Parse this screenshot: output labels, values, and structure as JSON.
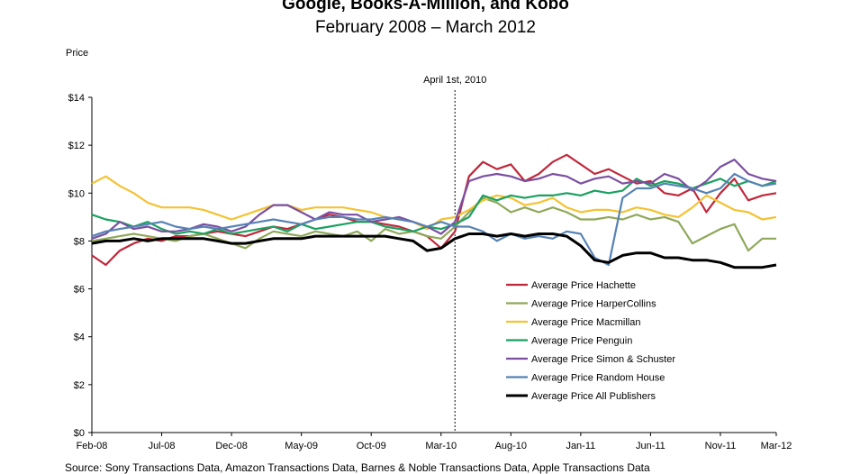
{
  "chart_data": {
    "type": "line",
    "title": "Google, Books-A-Million, and Kobo",
    "subtitle": "February 2008 – March 2012",
    "ylabel": "Price",
    "xlabel": "",
    "ylim": [
      0,
      14
    ],
    "yticks": [
      "$0",
      "$2",
      "$4",
      "$6",
      "$8",
      "$10",
      "$12",
      "$14"
    ],
    "x_tick_labels": [
      "Feb-08",
      "Jul-08",
      "Dec-08",
      "May-09",
      "Oct-09",
      "Mar-10",
      "Aug-10",
      "Jan-11",
      "Jun-11",
      "Nov-11",
      "Mar-12"
    ],
    "x_tick_index": [
      0,
      5,
      10,
      15,
      20,
      25,
      30,
      35,
      40,
      45,
      49
    ],
    "grid": false,
    "legend_position": "right-center",
    "annotation": {
      "label": "April 1st, 2010",
      "x_index": 26,
      "style": "dotted-vertical-line"
    },
    "series": [
      {
        "name": "Average Price Hachette",
        "color": "#c0273a",
        "values": [
          7.4,
          7.0,
          7.6,
          7.9,
          8.1,
          8.0,
          8.2,
          8.2,
          8.3,
          8.4,
          8.3,
          8.2,
          8.4,
          8.6,
          8.5,
          8.7,
          8.9,
          9.1,
          9.0,
          8.8,
          8.8,
          8.7,
          8.6,
          8.4,
          8.2,
          7.7,
          8.4,
          10.7,
          11.3,
          11.0,
          11.2,
          10.5,
          10.8,
          11.3,
          11.6,
          11.2,
          10.8,
          11.0,
          10.7,
          10.4,
          10.5,
          10.0,
          9.9,
          10.2,
          9.2,
          10.0,
          10.6,
          9.7,
          9.9,
          10.0
        ]
      },
      {
        "name": "Average Price HarperCollins",
        "color": "#8fa85a",
        "values": [
          8.0,
          8.1,
          8.2,
          8.3,
          8.2,
          8.1,
          8.0,
          8.2,
          8.3,
          8.1,
          7.9,
          7.7,
          8.1,
          8.4,
          8.3,
          8.2,
          8.4,
          8.3,
          8.2,
          8.4,
          8.0,
          8.5,
          8.3,
          8.4,
          8.2,
          8.1,
          8.6,
          9.2,
          9.8,
          9.6,
          9.2,
          9.4,
          9.2,
          9.4,
          9.2,
          8.9,
          8.9,
          9.0,
          8.9,
          9.1,
          8.9,
          9.0,
          8.8,
          7.9,
          8.2,
          8.5,
          8.7,
          7.6,
          8.1,
          8.1
        ]
      },
      {
        "name": "Average Price Macmillan",
        "color": "#f4c233",
        "values": [
          10.4,
          10.7,
          10.3,
          10.0,
          9.6,
          9.4,
          9.4,
          9.4,
          9.3,
          9.1,
          8.9,
          9.1,
          9.3,
          9.5,
          9.5,
          9.3,
          9.4,
          9.4,
          9.4,
          9.3,
          9.2,
          9.0,
          8.9,
          8.8,
          8.5,
          8.9,
          9.0,
          9.3,
          9.7,
          9.9,
          9.8,
          9.5,
          9.6,
          9.8,
          9.4,
          9.2,
          9.3,
          9.3,
          9.2,
          9.4,
          9.3,
          9.1,
          9.0,
          9.4,
          9.9,
          9.6,
          9.3,
          9.2,
          8.9,
          9.0
        ]
      },
      {
        "name": "Average Price Penguin",
        "color": "#1aa160",
        "values": [
          9.1,
          8.9,
          8.8,
          8.6,
          8.8,
          8.5,
          8.3,
          8.4,
          8.3,
          8.5,
          8.3,
          8.4,
          8.5,
          8.6,
          8.4,
          8.7,
          8.5,
          8.6,
          8.7,
          8.8,
          8.8,
          8.6,
          8.5,
          8.4,
          8.6,
          8.5,
          8.7,
          9.0,
          9.9,
          9.7,
          9.9,
          9.8,
          9.9,
          9.9,
          10.0,
          9.9,
          10.1,
          10.0,
          10.1,
          10.6,
          10.3,
          10.5,
          10.4,
          10.2,
          10.4,
          10.6,
          10.3,
          10.5,
          10.3,
          10.5
        ]
      },
      {
        "name": "Average Price Simon & Schuster",
        "color": "#7a4fa0",
        "values": [
          8.1,
          8.3,
          8.8,
          8.5,
          8.6,
          8.4,
          8.4,
          8.5,
          8.7,
          8.6,
          8.4,
          8.6,
          9.1,
          9.5,
          9.5,
          9.2,
          8.9,
          9.2,
          9.1,
          9.1,
          8.8,
          8.9,
          9.0,
          8.8,
          8.6,
          8.3,
          8.8,
          10.5,
          10.7,
          10.8,
          10.7,
          10.5,
          10.6,
          10.8,
          10.7,
          10.4,
          10.6,
          10.7,
          10.4,
          10.5,
          10.4,
          10.8,
          10.6,
          10.1,
          10.5,
          11.1,
          11.4,
          10.8,
          10.6,
          10.5
        ]
      },
      {
        "name": "Average Price Random House",
        "color": "#5682b4",
        "values": [
          8.2,
          8.4,
          8.5,
          8.6,
          8.7,
          8.8,
          8.6,
          8.5,
          8.6,
          8.5,
          8.6,
          8.7,
          8.8,
          8.9,
          8.8,
          8.7,
          8.9,
          9.0,
          9.0,
          8.9,
          8.9,
          9.0,
          8.9,
          8.8,
          8.6,
          8.8,
          8.6,
          8.6,
          8.4,
          8.0,
          8.3,
          8.1,
          8.2,
          8.1,
          8.4,
          8.3,
          7.3,
          7.0,
          9.8,
          10.2,
          10.2,
          10.4,
          10.3,
          10.2,
          10.0,
          10.2,
          10.8,
          10.5,
          10.3,
          10.4
        ]
      },
      {
        "name": "Average Price All Publishers",
        "color": "#000000",
        "values": [
          7.9,
          8.0,
          8.0,
          8.1,
          8.0,
          8.1,
          8.1,
          8.1,
          8.1,
          8.0,
          7.9,
          7.9,
          8.0,
          8.1,
          8.1,
          8.1,
          8.2,
          8.2,
          8.2,
          8.2,
          8.2,
          8.2,
          8.1,
          8.0,
          7.6,
          7.7,
          8.1,
          8.3,
          8.3,
          8.2,
          8.3,
          8.2,
          8.3,
          8.3,
          8.2,
          7.8,
          7.2,
          7.1,
          7.4,
          7.5,
          7.5,
          7.3,
          7.3,
          7.2,
          7.2,
          7.1,
          6.9,
          6.9,
          6.9,
          7.0
        ]
      }
    ]
  },
  "source_text": "Source:  Sony Transactions Data, Amazon Transactions Data, Barnes & Noble Transactions Data, Apple Transactions Data"
}
